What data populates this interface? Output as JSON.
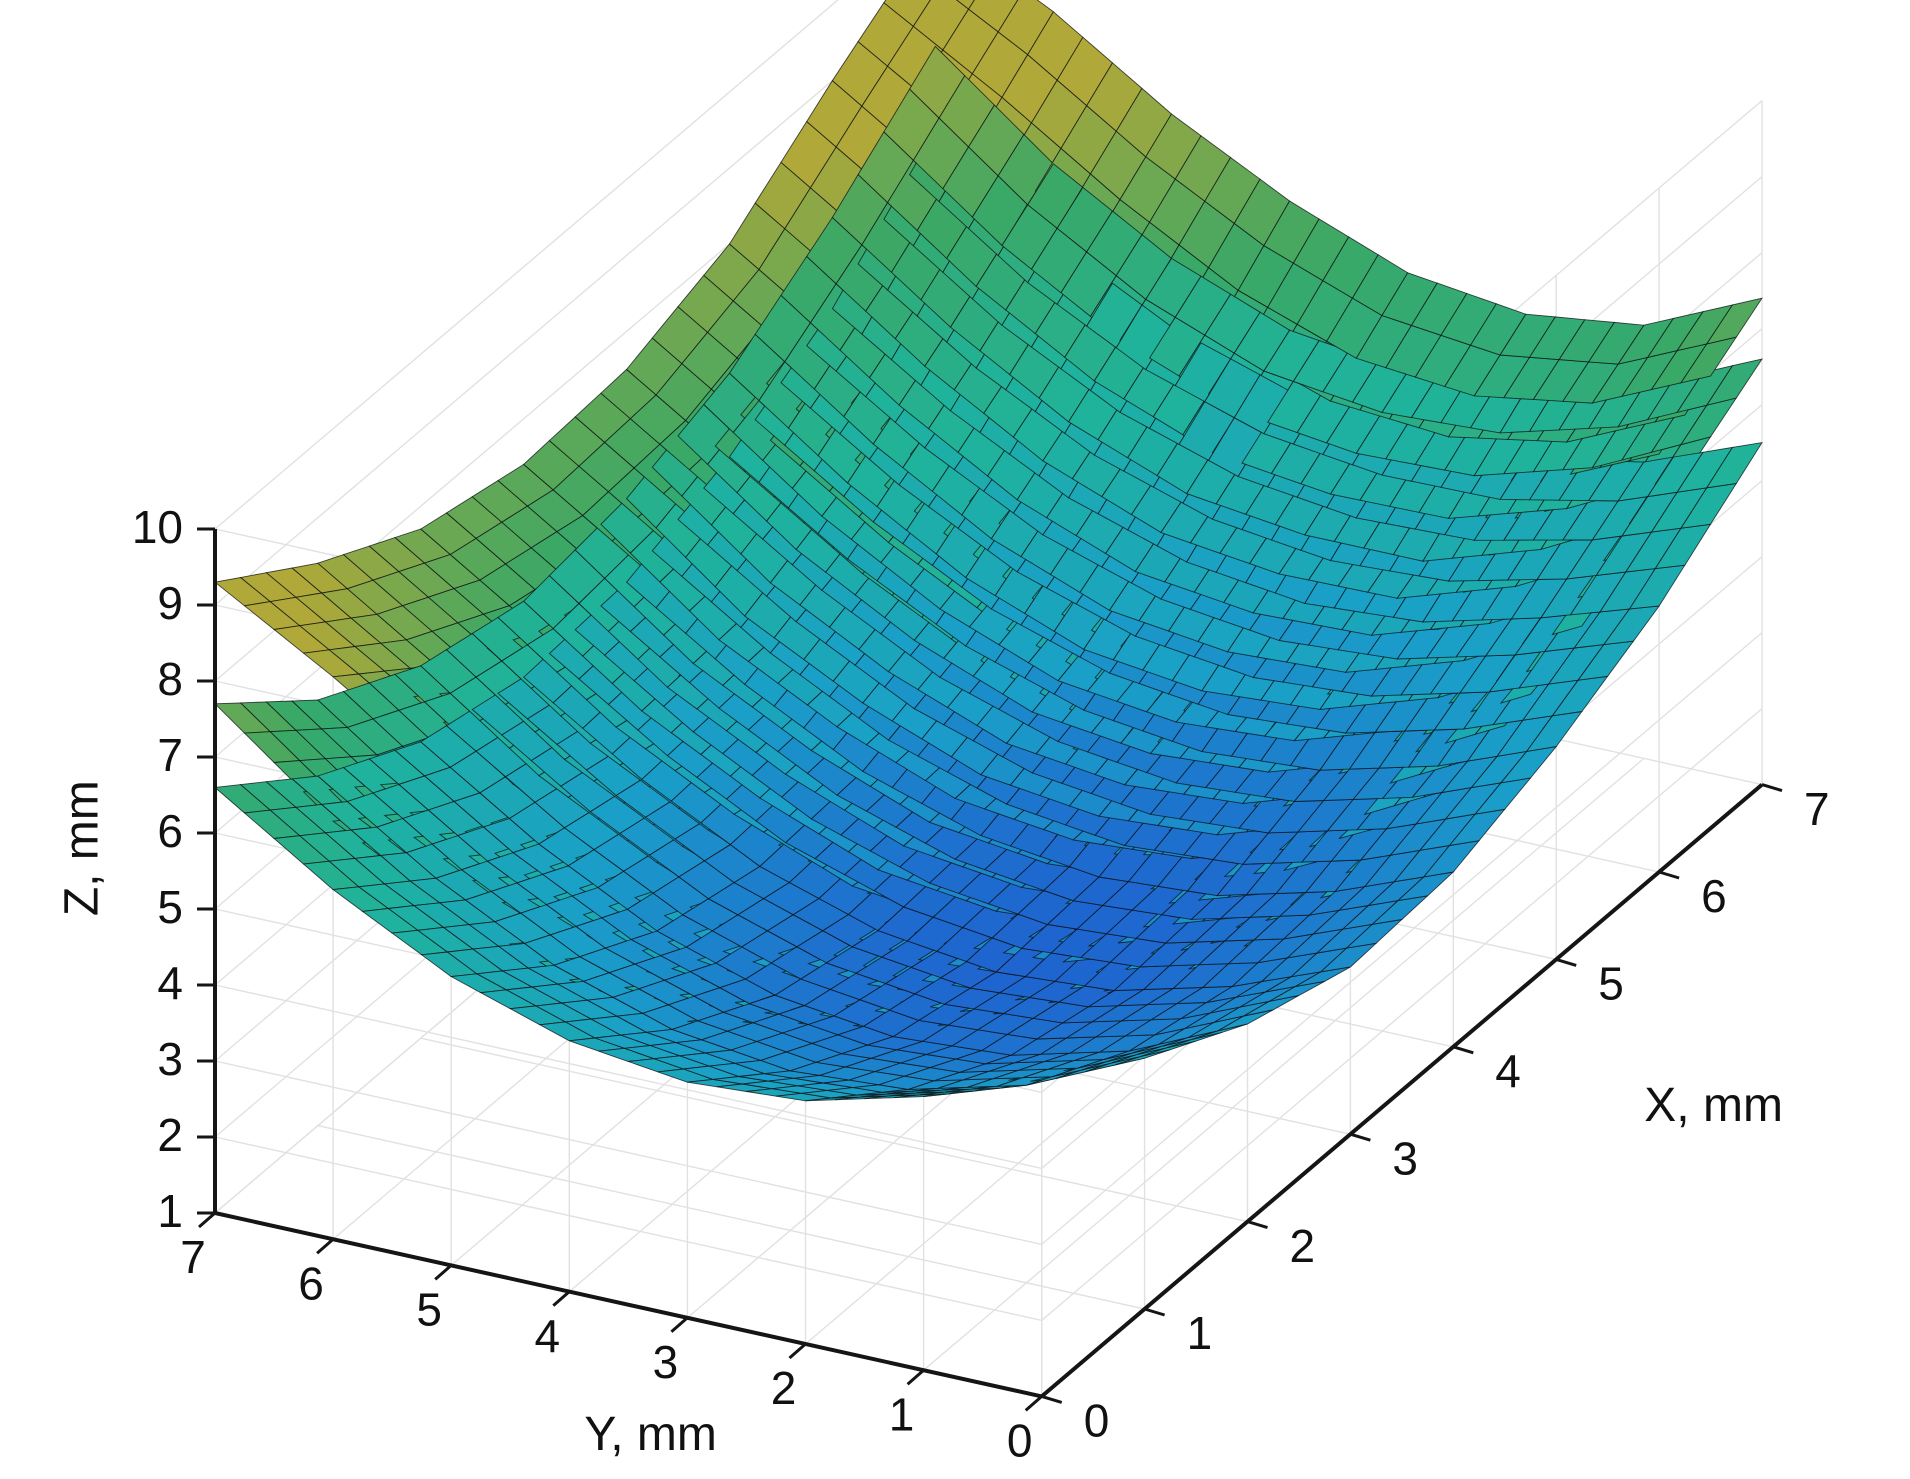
{
  "chart_data": {
    "type": "surface3d",
    "title": "",
    "xlabel": "X, mm",
    "ylabel": "Y, mm",
    "zlabel": "Z, mm",
    "xlim": [
      0,
      7
    ],
    "ylim": [
      0,
      7
    ],
    "zlim": [
      1,
      10
    ],
    "xticks": [
      "0",
      "1",
      "2",
      "3",
      "4",
      "5",
      "6",
      "7"
    ],
    "yticks": [
      "7",
      "6",
      "5",
      "4",
      "3",
      "2",
      "1",
      "0"
    ],
    "zticks": [
      "1",
      "2",
      "3",
      "4",
      "5",
      "6",
      "7",
      "8",
      "9",
      "10"
    ],
    "grid": true,
    "legend": "none",
    "colormap": [
      "#1f5fd0",
      "#1aa0c8",
      "#1fb39c",
      "#3aa866",
      "#b0a838"
    ],
    "surfaces": [
      {
        "x": [
          0,
          1,
          2,
          3,
          4,
          5,
          6,
          7
        ],
        "y": [
          0,
          1,
          2,
          3,
          4,
          5,
          6,
          7
        ],
        "z": [
          [
            5.3,
            4.3,
            3.6,
            3.2,
            3.3,
            3.8,
            4.5,
            5.5
          ],
          [
            4.6,
            3.6,
            2.9,
            2.6,
            2.7,
            3.2,
            4.0,
            4.9
          ],
          [
            4.2,
            3.2,
            2.5,
            2.2,
            2.3,
            2.8,
            3.6,
            4.6
          ],
          [
            4.1,
            3.1,
            2.4,
            2.1,
            2.2,
            2.7,
            3.5,
            4.6
          ],
          [
            4.3,
            3.3,
            2.6,
            2.3,
            2.4,
            2.9,
            3.7,
            4.8
          ],
          [
            4.8,
            3.8,
            3.1,
            2.8,
            2.9,
            3.4,
            4.2,
            5.3
          ],
          [
            5.6,
            4.6,
            3.9,
            3.6,
            3.7,
            4.2,
            5.0,
            6.1
          ],
          [
            6.6,
            5.6,
            4.9,
            4.6,
            4.7,
            5.2,
            6.0,
            7.2
          ]
        ]
      },
      {
        "x": [
          0,
          1,
          2,
          3,
          4,
          5,
          6,
          7
        ],
        "y": [
          0,
          1,
          2,
          3,
          4,
          5,
          6,
          7
        ],
        "z": [
          [
            6.3,
            5.2,
            4.5,
            4.2,
            4.4,
            4.9,
            5.7,
            6.6
          ],
          [
            5.6,
            4.5,
            3.8,
            3.5,
            3.6,
            4.1,
            4.9,
            5.9
          ],
          [
            5.1,
            4.0,
            3.3,
            3.0,
            3.1,
            3.6,
            4.4,
            5.5
          ],
          [
            4.9,
            3.9,
            3.2,
            2.9,
            3.0,
            3.5,
            4.4,
            5.4
          ],
          [
            5.1,
            4.1,
            3.4,
            3.1,
            3.2,
            3.7,
            4.6,
            5.6
          ],
          [
            5.7,
            4.7,
            4.0,
            3.7,
            3.8,
            4.3,
            5.2,
            6.2
          ],
          [
            6.5,
            5.5,
            4.8,
            4.5,
            4.6,
            5.2,
            6.1,
            7.1
          ],
          [
            7.7,
            6.6,
            5.9,
            5.6,
            5.8,
            6.3,
            7.2,
            8.3
          ]
        ]
      },
      {
        "x": [
          0,
          1,
          2,
          3,
          4,
          5,
          6,
          7
        ],
        "y": [
          0,
          1,
          2,
          3,
          4,
          5,
          6,
          7
        ],
        "z": [
          [
            7.0,
            6.0,
            5.3,
            5.0,
            5.2,
            5.7,
            6.5,
            7.4
          ],
          [
            6.3,
            5.3,
            4.6,
            4.3,
            4.5,
            5.0,
            5.8,
            6.7
          ],
          [
            6.0,
            5.0,
            4.3,
            4.0,
            4.1,
            4.6,
            5.5,
            6.5
          ],
          [
            6.1,
            5.1,
            4.4,
            4.1,
            4.2,
            4.7,
            5.6,
            6.7
          ],
          [
            6.6,
            5.6,
            4.9,
            4.6,
            4.7,
            5.2,
            6.1,
            7.3
          ],
          [
            7.4,
            6.4,
            5.7,
            5.4,
            5.5,
            6.0,
            7.0,
            8.1
          ],
          [
            8.4,
            7.4,
            6.7,
            6.4,
            6.5,
            7.0,
            8.0,
            9.1
          ],
          [
            9.3,
            8.4,
            7.7,
            7.4,
            7.5,
            8.0,
            9.0,
            9.9
          ]
        ]
      }
    ]
  }
}
